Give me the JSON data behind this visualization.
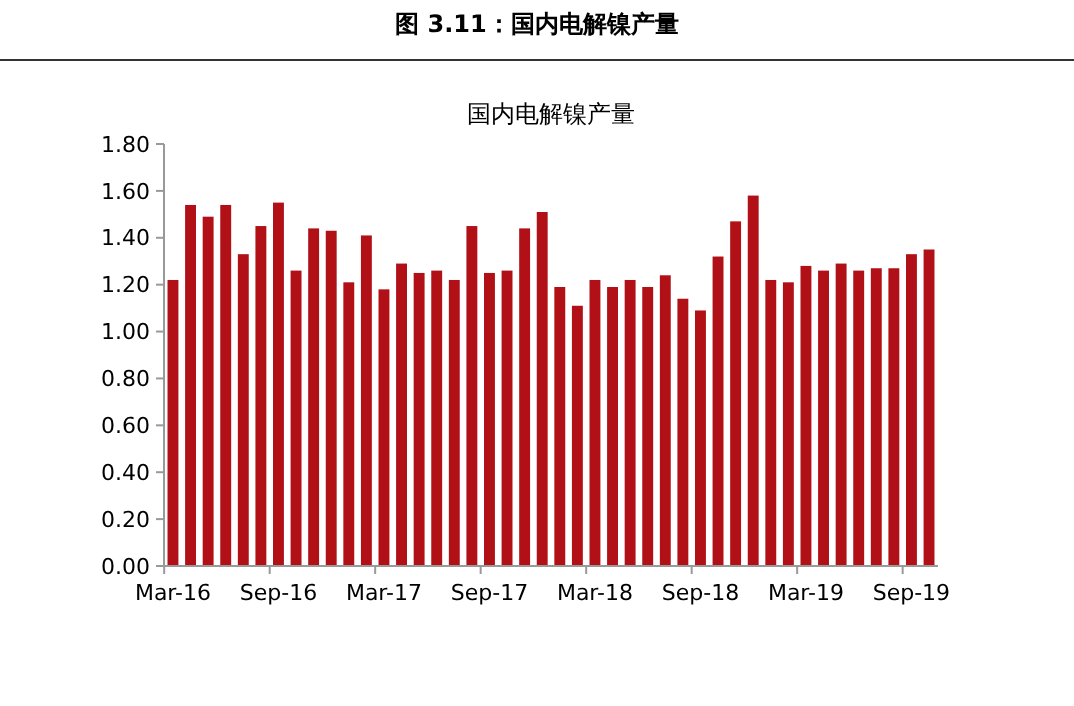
{
  "chart_data": {
    "type": "bar",
    "title": "图 3.11：国内电解镍产量",
    "subtitle": "国内电解镍产量",
    "categories": [
      "Mar-16",
      null,
      null,
      null,
      null,
      null,
      "Sep-16",
      null,
      null,
      null,
      null,
      null,
      "Mar-17",
      null,
      null,
      null,
      null,
      null,
      "Sep-17",
      null,
      null,
      null,
      null,
      null,
      "Mar-18",
      null,
      null,
      null,
      null,
      null,
      "Sep-18",
      null,
      null,
      null,
      null,
      null,
      "Mar-19",
      null,
      null,
      null,
      null,
      null,
      "Sep-19",
      null
    ],
    "values": [
      1.22,
      1.54,
      1.49,
      1.54,
      1.33,
      1.45,
      1.55,
      1.26,
      1.44,
      1.43,
      1.21,
      1.41,
      1.18,
      1.29,
      1.25,
      1.26,
      1.22,
      1.45,
      1.25,
      1.26,
      1.44,
      1.51,
      1.19,
      1.11,
      1.22,
      1.19,
      1.22,
      1.19,
      1.24,
      1.14,
      1.09,
      1.32,
      1.47,
      1.58,
      1.22,
      1.21,
      1.28,
      1.26,
      1.29,
      1.26,
      1.27,
      1.27,
      1.33,
      1.35
    ],
    "color": "#b01016",
    "ylim": [
      0,
      1.8
    ],
    "yticks": [
      {
        "value": 0,
        "label": "0.00"
      },
      {
        "value": 0.2,
        "label": "0.20"
      },
      {
        "value": 0.4,
        "label": "0.40"
      },
      {
        "value": 0.6,
        "label": "0.60"
      },
      {
        "value": 0.8,
        "label": "0.80"
      },
      {
        "value": 1,
        "label": "1.00"
      },
      {
        "value": 1.2,
        "label": "1.20"
      },
      {
        "value": 1.4,
        "label": "1.40"
      },
      {
        "value": 1.6,
        "label": "1.60"
      },
      {
        "value": 1.8,
        "label": "1.80"
      }
    ],
    "grid": false
  }
}
